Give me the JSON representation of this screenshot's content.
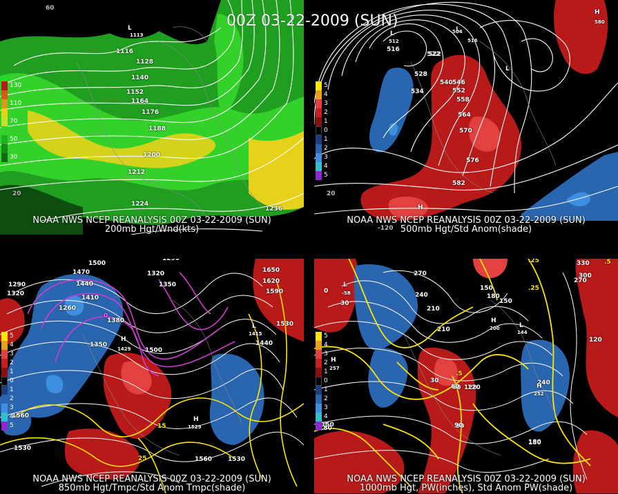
{
  "main_title": "00Z 03-22-2009 (SUN)",
  "colors": {
    "wind_light": "#1f9e1f",
    "wind_mid": "#34d12a",
    "wind_yellow": "#e6d21a",
    "anom_red": "#b81a1a",
    "anom_red_light": "#e34040",
    "anom_blue": "#2a65b0",
    "anom_blue_light": "#3f8fe0",
    "contour_yellow": "#ffe600",
    "contour_magenta": "#d23cd2",
    "contour_white": "#ffffff"
  },
  "panels": [
    {
      "id": "p1",
      "caption_line1": "NOAA NWS NCEP REANALYSIS 00Z 03-22-2009 (SUN)",
      "caption_line2": "200mb Hgt/Wnd(kts)",
      "legend": {
        "entries": [
          {
            "label": "130",
            "color": "#b81a1a"
          },
          {
            "label": "",
            "color": "#d85a1a"
          },
          {
            "label": "110",
            "color": "#d89a1a"
          },
          {
            "label": "",
            "color": "#e6d21a"
          },
          {
            "label": "70",
            "color": "#c8e02a"
          },
          {
            "label": "",
            "color": "#34d12a"
          },
          {
            "label": "50",
            "color": "#22b022"
          },
          {
            "label": "",
            "color": "#178a17"
          },
          {
            "label": "30",
            "color": "#0e6a0e"
          }
        ]
      },
      "contour_labels": [
        "1116",
        "1128",
        "1140",
        "1152",
        "1164",
        "1176",
        "1188",
        "1200",
        "1212",
        "1224",
        "1236"
      ],
      "lows": [
        {
          "letter": "L",
          "value": "1113"
        }
      ],
      "lat_labels": [
        "20"
      ],
      "lon_labels": [
        "60"
      ]
    },
    {
      "id": "p2",
      "caption_line1": "NOAA NWS NCEP REANALYSIS 00Z 03-22-2009 (SUN)",
      "caption_line2": "500mb Hgt/Std Anom(shade)",
      "legend": {
        "entries": [
          {
            "label": "5",
            "color": "#ffe600"
          },
          {
            "label": "4",
            "color": "#e6a01a"
          },
          {
            "label": "3",
            "color": "#e34040"
          },
          {
            "label": "2",
            "color": "#c82020"
          },
          {
            "label": "1",
            "color": "#8a1010"
          },
          {
            "label": "0",
            "color": "#000000"
          },
          {
            "label": "1",
            "color": "#1c3f7a"
          },
          {
            "label": "2",
            "color": "#2a65b0"
          },
          {
            "label": "3",
            "color": "#3f8fe0"
          },
          {
            "label": "4",
            "color": "#30c0d0"
          },
          {
            "label": "5",
            "color": "#8a2ad0"
          }
        ]
      },
      "contour_labels": [
        "516",
        "522",
        "528",
        "534",
        "540",
        "546",
        "552",
        "558",
        "564",
        "570",
        "576",
        "582",
        "522"
      ],
      "lows": [
        {
          "letter": "L",
          "value": "512"
        },
        {
          "letter": "L",
          "value": "504"
        },
        {
          "letter": "L",
          "value": "516"
        }
      ],
      "highs": [
        {
          "letter": "H",
          "value": "580"
        },
        {
          "letter": "H",
          "value": ""
        }
      ],
      "lat_labels": [
        "20"
      ],
      "lon_labels": [
        "-120"
      ]
    },
    {
      "id": "p3",
      "caption_line1": "NOAA NWS NCEP REANALYSIS 00Z 03-22-2009 (SUN)",
      "caption_line2": "850mb Hgt/Tmpc/Std Anom Tmpc(shade)",
      "legend": {
        "entries": [
          {
            "label": "5",
            "color": "#ffe600"
          },
          {
            "label": "4",
            "color": "#e6a01a"
          },
          {
            "label": "3",
            "color": "#e34040"
          },
          {
            "label": "2",
            "color": "#c82020"
          },
          {
            "label": "1",
            "color": "#8a1010"
          },
          {
            "label": "0",
            "color": "#000000"
          },
          {
            "label": "1",
            "color": "#1c3f7a"
          },
          {
            "label": "2",
            "color": "#2a65b0"
          },
          {
            "label": "3",
            "color": "#3f8fe0"
          },
          {
            "label": "4",
            "color": "#30c0d0"
          },
          {
            "label": "5",
            "color": "#8a2ad0"
          }
        ]
      },
      "contour_labels": [
        "1500",
        "1470",
        "1440",
        "1410",
        "1380",
        "1350",
        "1320",
        "1290",
        "1260",
        "1650",
        "1620",
        "1590",
        "1530",
        "1440",
        "1500",
        "1560",
        "1530",
        "1560"
      ],
      "lows": [
        {
          "letter": "L",
          "value": "1415"
        }
      ],
      "highs": [
        {
          "letter": "H",
          "value": "1429"
        },
        {
          "letter": "H",
          "value": "1529"
        }
      ],
      "temp_labels": [
        "0",
        "15",
        "25"
      ]
    },
    {
      "id": "p4",
      "caption_line1": "NOAA NWS NCEP REANALYSIS 00Z 03-22-2009 (SUN)",
      "caption_line2": "1000mb Hgt, PW(inches), Std Anom PW(shade)",
      "legend": {
        "entries": [
          {
            "label": "5",
            "color": "#ffe600"
          },
          {
            "label": "4",
            "color": "#e6a01a"
          },
          {
            "label": "3",
            "color": "#e34040"
          },
          {
            "label": "2",
            "color": "#c82020"
          },
          {
            "label": "1",
            "color": "#8a1010"
          },
          {
            "label": "0",
            "color": "#000000"
          },
          {
            "label": "1",
            "color": "#1c3f7a"
          },
          {
            "label": "2",
            "color": "#2a65b0"
          },
          {
            "label": "3",
            "color": "#3f8fe0"
          },
          {
            "label": "4",
            "color": "#30c0d0"
          },
          {
            "label": "5",
            "color": "#8a2ad0"
          }
        ]
      },
      "contour_labels": [
        "270",
        "240",
        "210",
        "180",
        "150",
        "120",
        "90",
        "60",
        "30",
        "0",
        "330",
        "300",
        "270",
        "240",
        "210",
        "180",
        "150",
        "120",
        "90",
        "60",
        "30"
      ],
      "pw_labels": [
        ".25",
        ".5",
        ".25",
        ".5"
      ],
      "lows": [
        {
          "letter": "L",
          "value": "-58"
        },
        {
          "letter": "L",
          "value": "144"
        }
      ],
      "highs": [
        {
          "letter": "H",
          "value": "257"
        },
        {
          "letter": "H",
          "value": "200"
        },
        {
          "letter": "H",
          "value": "252"
        }
      ]
    }
  ]
}
